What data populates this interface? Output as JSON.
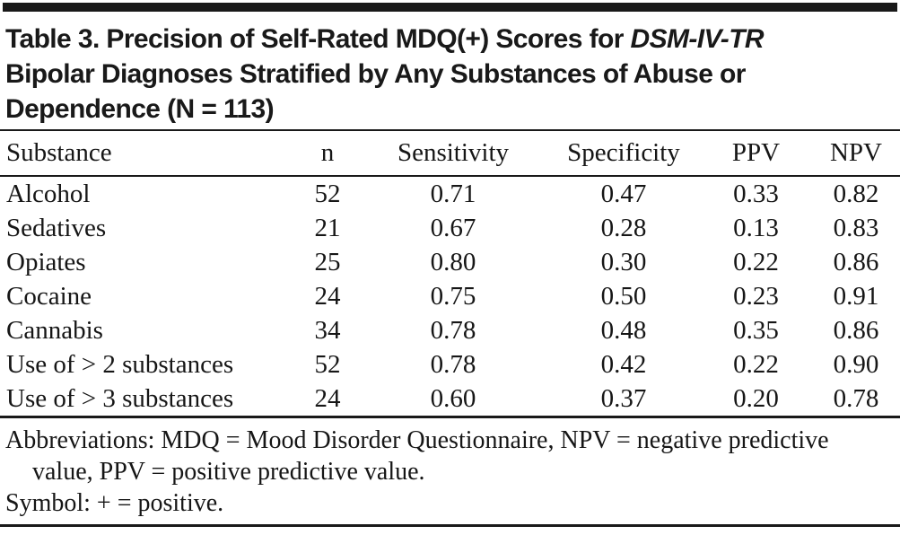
{
  "title": {
    "line1_prefix": "Table 3. Precision of Self-Rated MDQ(+) Scores for ",
    "line1_italic": "DSM-IV-TR",
    "line2": "Bipolar Diagnoses Stratified by Any Substances of Abuse or",
    "line3": "Dependence (N = 113)"
  },
  "table": {
    "columns": [
      {
        "key": "substance",
        "label": "Substance"
      },
      {
        "key": "n",
        "label": "n"
      },
      {
        "key": "sensitivity",
        "label": "Sensitivity"
      },
      {
        "key": "specificity",
        "label": "Specificity"
      },
      {
        "key": "ppv",
        "label": "PPV"
      },
      {
        "key": "npv",
        "label": "NPV"
      }
    ],
    "rows": [
      {
        "substance": "Alcohol",
        "n": "52",
        "sensitivity": "0.71",
        "specificity": "0.47",
        "ppv": "0.33",
        "npv": "0.82"
      },
      {
        "substance": "Sedatives",
        "n": "21",
        "sensitivity": "0.67",
        "specificity": "0.28",
        "ppv": "0.13",
        "npv": "0.83"
      },
      {
        "substance": "Opiates",
        "n": "25",
        "sensitivity": "0.80",
        "specificity": "0.30",
        "ppv": "0.22",
        "npv": "0.86"
      },
      {
        "substance": "Cocaine",
        "n": "24",
        "sensitivity": "0.75",
        "specificity": "0.50",
        "ppv": "0.23",
        "npv": "0.91"
      },
      {
        "substance": "Cannabis",
        "n": "34",
        "sensitivity": "0.78",
        "specificity": "0.48",
        "ppv": "0.35",
        "npv": "0.86"
      },
      {
        "substance": "Use of > 2 substances",
        "n": "52",
        "sensitivity": "0.78",
        "specificity": "0.42",
        "ppv": "0.22",
        "npv": "0.90"
      },
      {
        "substance": "Use of > 3 substances",
        "n": "24",
        "sensitivity": "0.60",
        "specificity": "0.37",
        "ppv": "0.20",
        "npv": "0.78"
      }
    ]
  },
  "footnotes": {
    "abbreviations": "Abbreviations: MDQ = Mood Disorder Questionnaire, NPV = negative predictive value, PPV = positive predictive value.",
    "symbol": "Symbol: + = positive."
  },
  "colors": {
    "ink": "#191919",
    "background": "#ffffff"
  }
}
